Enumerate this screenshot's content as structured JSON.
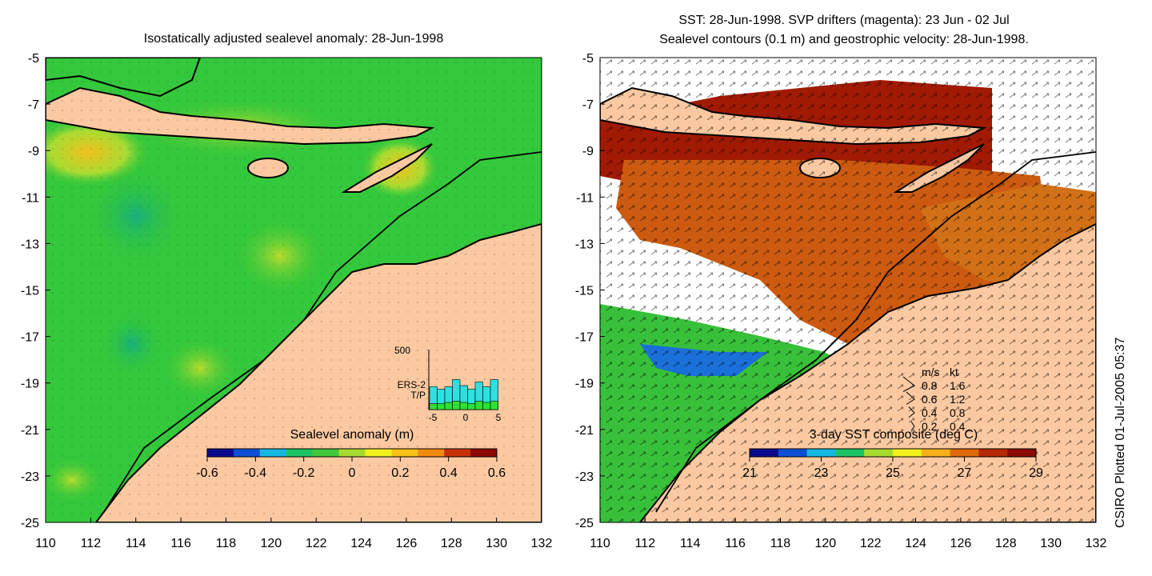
{
  "left_panel": {
    "title": "Isostatically adjusted sealevel anomaly: 28-Jun-1998",
    "colorbar": {
      "label": "Sealevel anomaly (m)",
      "ticks": [
        "-0.6",
        "-0.4",
        "-0.2",
        "0",
        "0.2",
        "0.4",
        "0.6"
      ],
      "colors": [
        "#0a0a8c",
        "#0f4fd6",
        "#16b8e0",
        "#1cc466",
        "#3ec83a",
        "#a6dc32",
        "#f2f01e",
        "#f7c21a",
        "#f28a10",
        "#c63206",
        "#8a0a02"
      ]
    },
    "inset_histogram": {
      "ymax_label": "500",
      "legend": [
        "ERS-2",
        "T/P"
      ],
      "legend_colors": [
        "#2ee0e0",
        "#2ee036"
      ],
      "xticks": [
        "-5",
        "0",
        "5"
      ],
      "ers2_values": [
        190,
        170,
        190,
        250,
        200,
        170,
        230,
        190,
        250
      ],
      "tp_values": [
        50,
        50,
        60,
        70,
        60,
        50,
        70,
        60,
        70
      ]
    }
  },
  "right_panel": {
    "title_line1": "SST: 28-Jun-1998. SVP drifters (magenta): 23 Jun - 02 Jul",
    "title_line2": "Sealevel contours (0.1 m) and geostrophic velocity: 28-Jun-1998.",
    "colorbar": {
      "label": "3-day SST composite (deg C)",
      "ticks": [
        "21",
        "23",
        "25",
        "27",
        "29"
      ],
      "colors": [
        "#0a0a8c",
        "#0f4fd6",
        "#16b8e0",
        "#1cc466",
        "#a6dc32",
        "#f2f01e",
        "#f7b01a",
        "#e06a0c",
        "#b82806",
        "#8a0a02"
      ]
    },
    "velocity_legend": {
      "header": [
        "m/s",
        "kt"
      ],
      "rows": [
        [
          "0.8",
          "1.6"
        ],
        [
          "0.6",
          "1.2"
        ],
        [
          "0.4",
          "0.8"
        ],
        [
          "0.2",
          "0.4"
        ]
      ]
    }
  },
  "axes": {
    "y_ticks": [
      "-5",
      "-7",
      "-9",
      "-11",
      "-13",
      "-15",
      "-17",
      "-19",
      "-21",
      "-23",
      "-25"
    ],
    "x_ticks": [
      "110",
      "112",
      "114",
      "116",
      "118",
      "120",
      "122",
      "124",
      "126",
      "128",
      "130",
      "132"
    ]
  },
  "credit": "CSIRO Plotted 01-Jul-2005 05:37",
  "colors": {
    "land": "#fbc9a1",
    "ocean_green": "#2ec83a",
    "coast": "#000000",
    "sst_hot": "#a01a04",
    "sst_mid": "#d2600e"
  }
}
